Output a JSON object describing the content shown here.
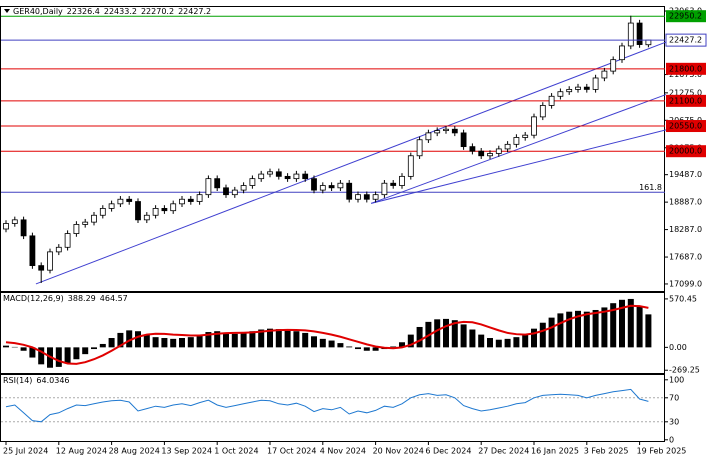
{
  "chart_data": [
    {
      "type": "candlestick",
      "title": "GER40,Daily",
      "categories": [
        "25 Jul 2024",
        null,
        null,
        null,
        null,
        null,
        "12 Aug 2024",
        null,
        null,
        null,
        null,
        null,
        "28 Aug 2024",
        null,
        null,
        null,
        null,
        null,
        "13 Sep 2024",
        null,
        null,
        null,
        null,
        null,
        "1 Oct 2024",
        null,
        null,
        null,
        null,
        null,
        "17 Oct 2024",
        null,
        null,
        null,
        null,
        null,
        "4 Nov 2024",
        null,
        null,
        null,
        null,
        null,
        "20 Nov 2024",
        null,
        null,
        null,
        null,
        null,
        "6 Dec 2024",
        null,
        null,
        null,
        null,
        null,
        "27 Dec 2024",
        null,
        null,
        null,
        null,
        null,
        "16 Jan 2025",
        null,
        null,
        null,
        null,
        null,
        "3 Feb 2025",
        null,
        null,
        null,
        null,
        null,
        "19 Feb 2025",
        null
      ],
      "open": [
        18300,
        18420,
        18500,
        18150,
        17500,
        17400,
        17800,
        17900,
        18200,
        18400,
        18450,
        18600,
        18750,
        18850,
        18950,
        18900,
        18500,
        18600,
        18750,
        18700,
        18850,
        18950,
        18900,
        19050,
        19400,
        19200,
        19050,
        19150,
        19250,
        19400,
        19500,
        19550,
        19450,
        19400,
        19500,
        19400,
        19150,
        19250,
        19200,
        19300,
        18950,
        19050,
        18950,
        19050,
        19300,
        19250,
        19450,
        19900,
        20250,
        20400,
        20450,
        20480,
        20400,
        20100,
        20000,
        19900,
        19950,
        20050,
        20150,
        20300,
        20350,
        20750,
        21000,
        21200,
        21300,
        21350,
        21400,
        21350,
        21600,
        21750,
        22000,
        22300,
        22800,
        22326.4
      ],
      "high": [
        18490,
        18570,
        18570,
        18220,
        17570,
        17870,
        17970,
        18270,
        18470,
        18520,
        18670,
        18820,
        18920,
        19020,
        19020,
        18970,
        18670,
        18820,
        18820,
        18920,
        19020,
        19020,
        19120,
        19470,
        19470,
        19270,
        19220,
        19320,
        19470,
        19570,
        19620,
        19620,
        19520,
        19570,
        19570,
        19470,
        19320,
        19320,
        19370,
        19370,
        19120,
        19120,
        19120,
        19370,
        19370,
        19520,
        19970,
        20320,
        20470,
        20520,
        20550,
        20550,
        20470,
        20170,
        20070,
        20020,
        20120,
        20220,
        20370,
        20420,
        20820,
        21070,
        21270,
        21370,
        21420,
        21470,
        21470,
        21670,
        21820,
        22070,
        22370,
        22960,
        22870,
        22433.2
      ],
      "low": [
        18230,
        18350,
        18080,
        17430,
        17120,
        17330,
        17730,
        17830,
        18130,
        18330,
        18380,
        18530,
        18680,
        18780,
        18830,
        18430,
        18430,
        18530,
        18630,
        18630,
        18780,
        18830,
        18830,
        18980,
        19130,
        18980,
        18980,
        19080,
        19180,
        19330,
        19430,
        19380,
        19330,
        19330,
        19330,
        19080,
        19080,
        19130,
        19130,
        18880,
        18880,
        18880,
        18880,
        18980,
        19180,
        19180,
        19380,
        19830,
        20180,
        20330,
        20380,
        20330,
        20030,
        19930,
        19830,
        19830,
        19880,
        19980,
        20080,
        20230,
        20280,
        20680,
        20930,
        21130,
        21230,
        21280,
        21280,
        21280,
        21530,
        21680,
        21930,
        22230,
        22260,
        22270.2
      ],
      "close": [
        18420,
        18500,
        18150,
        17500,
        17400,
        17800,
        17900,
        18200,
        18400,
        18450,
        18600,
        18750,
        18850,
        18950,
        18900,
        18500,
        18600,
        18750,
        18700,
        18850,
        18950,
        18900,
        19050,
        19400,
        19200,
        19050,
        19150,
        19250,
        19400,
        19500,
        19550,
        19450,
        19400,
        19500,
        19400,
        19150,
        19250,
        19200,
        19300,
        18950,
        19050,
        18950,
        19050,
        19300,
        19250,
        19450,
        19900,
        20250,
        20400,
        20450,
        20480,
        20400,
        20100,
        20000,
        19900,
        19950,
        20050,
        20150,
        20300,
        20350,
        20750,
        21000,
        21200,
        21300,
        21350,
        21400,
        21350,
        21600,
        21750,
        22000,
        22300,
        22800,
        22330,
        22427.2
      ],
      "ylim": [
        16945,
        23151
      ],
      "yticks": [
        {
          "value": 23063,
          "label": "23063.0"
        },
        {
          "value": 21675,
          "label": "21675.0"
        },
        {
          "value": 21275,
          "label": "21275.0"
        },
        {
          "value": 20675,
          "label": "20675.0"
        },
        {
          "value": 20075,
          "label": "20075.0"
        },
        {
          "value": 19487,
          "label": "19487.0"
        },
        {
          "value": 18887,
          "label": "18887.0"
        },
        {
          "value": 18287,
          "label": "18287.0"
        },
        {
          "value": 17687,
          "label": "17687.0"
        },
        {
          "value": 17099,
          "label": "17099.0"
        }
      ],
      "levels": [
        {
          "price": 22950.2,
          "color": "#00a000"
        },
        {
          "price": {
            "value": 21800,
            "label": "21800.0"
          },
          "color": "#e00000"
        },
        {
          "price": {
            "value": 21100,
            "label": "21100.0"
          },
          "color": "#e00000"
        },
        {
          "price": {
            "value": 20550,
            "label": "20550.0"
          },
          "color": "#e00000"
        },
        {
          "price": {
            "value": 20000,
            "label": "20000.0"
          },
          "color": "#e00000"
        }
      ],
      "fib": {
        "price": 19102,
        "label": 161.8,
        "color": "#4040c0"
      },
      "price_line_color": "#4040c0",
      "trendlines": [
        {
          "x": [
            3.4,
            75
          ],
          "y": [
            17099,
            22385
          ]
        },
        {
          "x": [
            41.5,
            75
          ],
          "y": [
            18860,
            21237
          ]
        },
        {
          "x": [
            41.5,
            75
          ],
          "y": [
            18860,
            20466
          ]
        }
      ],
      "trendline_color": "#4040d0"
    },
    {
      "type": "macd",
      "title": "MACD(12,26,9)",
      "histogram": [
        20,
        5,
        -40,
        -120,
        -200,
        -240,
        -230,
        -190,
        -140,
        -80,
        -20,
        40,
        110,
        170,
        200,
        190,
        150,
        120,
        110,
        100,
        110,
        120,
        140,
        180,
        190,
        170,
        160,
        170,
        190,
        210,
        220,
        215,
        200,
        190,
        170,
        130,
        100,
        80,
        50,
        10,
        -20,
        -40,
        -40,
        -20,
        10,
        60,
        150,
        240,
        300,
        330,
        335,
        320,
        270,
        210,
        150,
        110,
        90,
        100,
        120,
        150,
        220,
        290,
        350,
        400,
        420,
        430,
        420,
        440,
        470,
        520,
        560,
        570,
        480,
        388.29
      ],
      "signal": [
        60,
        50,
        30,
        0,
        -50,
        -110,
        -160,
        -190,
        -195,
        -175,
        -140,
        -95,
        -40,
        20,
        80,
        125,
        150,
        160,
        158,
        150,
        145,
        140,
        140,
        150,
        160,
        168,
        170,
        172,
        176,
        185,
        195,
        203,
        206,
        205,
        200,
        188,
        170,
        150,
        125,
        95,
        65,
        35,
        10,
        -5,
        -10,
        0,
        30,
        80,
        140,
        200,
        250,
        285,
        300,
        295,
        270,
        235,
        200,
        170,
        155,
        150,
        165,
        195,
        235,
        285,
        330,
        365,
        390,
        405,
        420,
        440,
        465,
        490,
        485,
        464.57
      ],
      "histogram_color": "#000000",
      "signal_color": "#e00000",
      "ylim": [
        -302,
        640
      ],
      "yticks": [
        570.45,
        {
          "value": 0,
          "label": "0.00"
        },
        -269.25
      ]
    },
    {
      "type": "rsi",
      "title": "RSI(14)",
      "values": [
        55,
        58,
        45,
        32,
        30,
        42,
        45,
        52,
        58,
        57,
        60,
        63,
        65,
        66,
        63,
        48,
        52,
        56,
        54,
        58,
        60,
        57,
        62,
        66,
        58,
        54,
        57,
        60,
        63,
        66,
        65,
        60,
        58,
        61,
        56,
        47,
        52,
        50,
        54,
        43,
        48,
        45,
        49,
        56,
        54,
        60,
        70,
        75,
        77,
        74,
        75,
        70,
        57,
        52,
        48,
        50,
        53,
        56,
        60,
        62,
        70,
        74,
        75,
        76,
        75,
        74,
        70,
        74,
        77,
        80,
        82,
        84,
        68,
        64.0346
      ],
      "color": "#1e78d0",
      "ylim": [
        -2,
        108
      ],
      "yticks": [
        100,
        70,
        30,
        0
      ],
      "levels": [
        70,
        30
      ]
    }
  ]
}
